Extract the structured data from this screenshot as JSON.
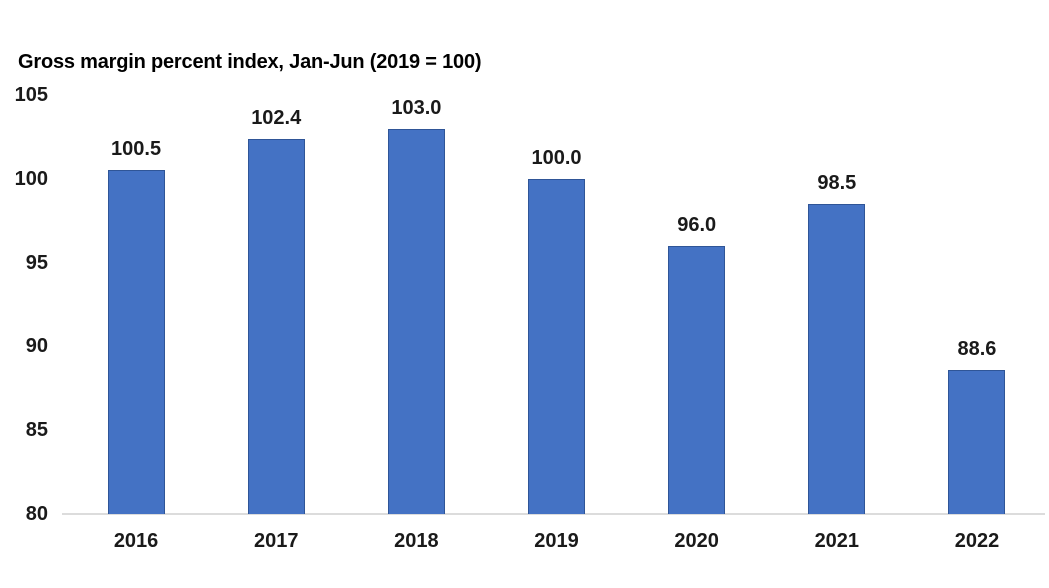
{
  "chart_data": {
    "type": "bar",
    "title": "Gross margin percent index, Jan-Jun (2019 = 100)",
    "categories": [
      "2016",
      "2017",
      "2018",
      "2019",
      "2020",
      "2021",
      "2022"
    ],
    "values": [
      100.5,
      102.4,
      103.0,
      100.0,
      96.0,
      98.5,
      88.6
    ],
    "data_labels": [
      "100.5",
      "102.4",
      "103.0",
      "100.0",
      "96.0",
      "98.5",
      "88.6"
    ],
    "xlabel": "",
    "ylabel": "",
    "ylim": [
      80,
      105
    ],
    "yticks": [
      105,
      100,
      95,
      90,
      85,
      80
    ],
    "grid": false,
    "legend": false,
    "bar_fill_color": "#4472c4",
    "bar_border_color": "#2f5597",
    "axis_line_color": "#dcdcdc",
    "text_color": "#1a1a1a"
  }
}
